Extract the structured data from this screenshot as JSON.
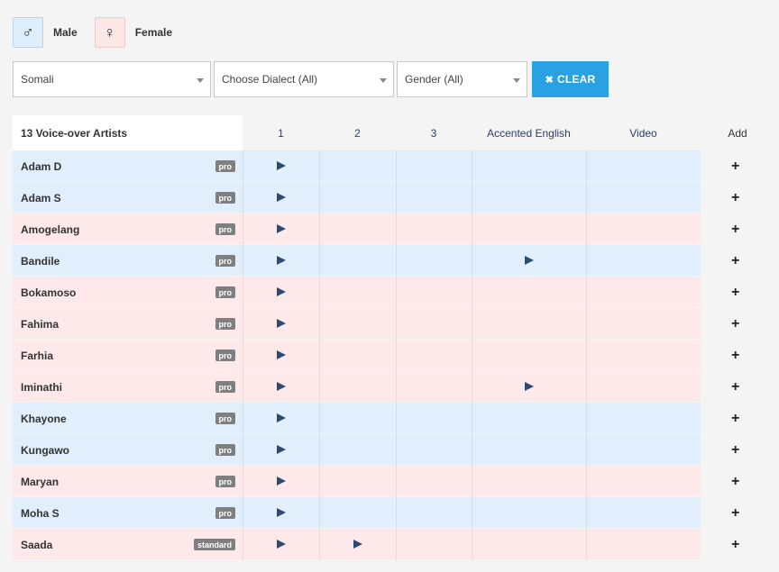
{
  "legend": {
    "male_icon": "♂",
    "male_label": "Male",
    "female_icon": "♀",
    "female_label": "Female"
  },
  "filters": {
    "language": "Somali",
    "dialect": "Choose Dialect (All)",
    "gender": "Gender (All)",
    "clear_label": "CLEAR",
    "clear_icon": "✖"
  },
  "table": {
    "title": "13 Voice-over Artists",
    "columns": [
      "1",
      "2",
      "3",
      "Accented English",
      "Video",
      "Add"
    ],
    "rows": [
      {
        "name": "Adam D",
        "tier": "pro",
        "gender": "male",
        "samples": [
          1
        ]
      },
      {
        "name": "Adam S",
        "tier": "pro",
        "gender": "male",
        "samples": [
          1
        ]
      },
      {
        "name": "Amogelang",
        "tier": "pro",
        "gender": "female",
        "samples": [
          1
        ]
      },
      {
        "name": "Bandile",
        "tier": "pro",
        "gender": "male",
        "samples": [
          1,
          4
        ]
      },
      {
        "name": "Bokamoso",
        "tier": "pro",
        "gender": "female",
        "samples": [
          1
        ]
      },
      {
        "name": "Fahima",
        "tier": "pro",
        "gender": "female",
        "samples": [
          1
        ]
      },
      {
        "name": "Farhia",
        "tier": "pro",
        "gender": "female",
        "samples": [
          1
        ]
      },
      {
        "name": "Iminathi",
        "tier": "pro",
        "gender": "female",
        "samples": [
          1,
          4
        ]
      },
      {
        "name": "Khayone",
        "tier": "pro",
        "gender": "male",
        "samples": [
          1
        ]
      },
      {
        "name": "Kungawo",
        "tier": "pro",
        "gender": "male",
        "samples": [
          1
        ]
      },
      {
        "name": "Maryan",
        "tier": "pro",
        "gender": "female",
        "samples": [
          1
        ]
      },
      {
        "name": "Moha S",
        "tier": "pro",
        "gender": "male",
        "samples": [
          1
        ]
      },
      {
        "name": "Saada",
        "tier": "standard",
        "gender": "female",
        "samples": [
          1,
          2
        ]
      }
    ],
    "add_icon": "+"
  }
}
